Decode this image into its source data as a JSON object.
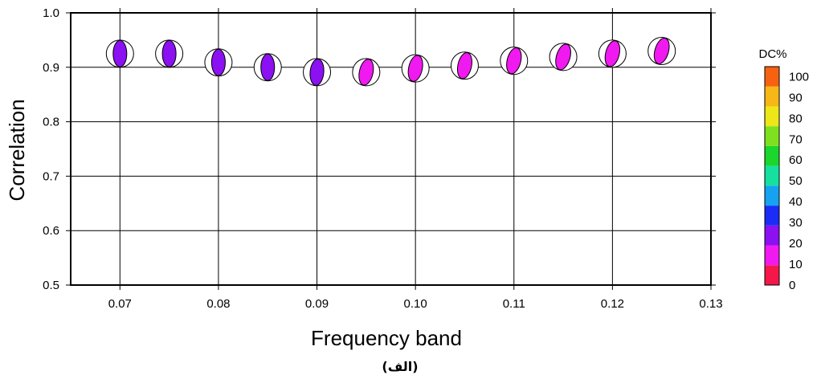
{
  "chart_data": {
    "type": "scatter",
    "xlabel": "Frequency band",
    "ylabel": "Correlation",
    "xlim": [
      0.065,
      0.13
    ],
    "ylim": [
      0.5,
      1.0
    ],
    "x_ticks": [
      "0.07",
      "0.08",
      "0.09",
      "0.10",
      "0.11",
      "0.12",
      "0.13"
    ],
    "x_tick_values": [
      0.07,
      0.08,
      0.09,
      0.1,
      0.11,
      0.12,
      0.13
    ],
    "y_ticks": [
      "0.5",
      "0.6",
      "0.7",
      "0.8",
      "0.9",
      "1.0"
    ],
    "y_tick_values": [
      0.5,
      0.6,
      0.7,
      0.8,
      0.9,
      1.0
    ],
    "grid": true,
    "points": [
      {
        "x": 0.07,
        "y": 0.925,
        "dc": 22,
        "color": "#8B10F2",
        "rot": 0
      },
      {
        "x": 0.075,
        "y": 0.925,
        "dc": 22,
        "color": "#8B10F2",
        "rot": 0
      },
      {
        "x": 0.08,
        "y": 0.909,
        "dc": 22,
        "color": "#8B10F2",
        "rot": 0
      },
      {
        "x": 0.085,
        "y": 0.9,
        "dc": 22,
        "color": "#8B10F2",
        "rot": 0
      },
      {
        "x": 0.09,
        "y": 0.891,
        "dc": 22,
        "color": "#8B10F2",
        "rot": 5
      },
      {
        "x": 0.095,
        "y": 0.891,
        "dc": 15,
        "color": "#F019F0",
        "rot": 12
      },
      {
        "x": 0.1,
        "y": 0.898,
        "dc": 15,
        "color": "#F019F0",
        "rot": 12
      },
      {
        "x": 0.105,
        "y": 0.903,
        "dc": 15,
        "color": "#F019F0",
        "rot": 12
      },
      {
        "x": 0.11,
        "y": 0.912,
        "dc": 15,
        "color": "#F019F0",
        "rot": 14
      },
      {
        "x": 0.115,
        "y": 0.919,
        "dc": 15,
        "color": "#F019F0",
        "rot": 16
      },
      {
        "x": 0.12,
        "y": 0.925,
        "dc": 15,
        "color": "#F019F0",
        "rot": 14
      },
      {
        "x": 0.125,
        "y": 0.93,
        "dc": 15,
        "color": "#F019F0",
        "rot": 16
      }
    ],
    "colorbar": {
      "title": "DC%",
      "labels": [
        "0",
        "10",
        "20",
        "30",
        "40",
        "50",
        "60",
        "70",
        "80",
        "90",
        "100"
      ],
      "colors": [
        "#F5164A",
        "#F019F0",
        "#8B10F2",
        "#1A2CF5",
        "#15A2F0",
        "#15E0A0",
        "#1BD62C",
        "#7EE01E",
        "#EDE618",
        "#F7B716",
        "#F76211"
      ]
    },
    "caption": "(الف)"
  }
}
